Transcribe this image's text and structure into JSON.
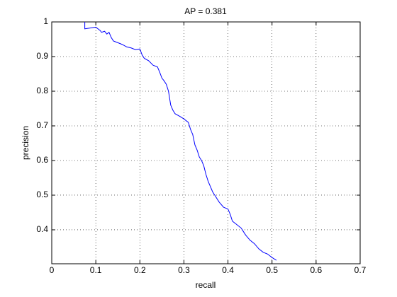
{
  "chart_data": {
    "type": "line",
    "title": "AP = 0.381",
    "x_label": "recall",
    "y_label": "precision",
    "xlim": [
      0,
      0.7
    ],
    "xticks": [
      0,
      0.1,
      0.2,
      0.3,
      0.4,
      0.5,
      0.6,
      0.7
    ],
    "ylim": [
      0.302,
      1
    ],
    "yticks": [
      0.4,
      0.5,
      0.6,
      0.7,
      0.8,
      0.9,
      1
    ],
    "grid": true,
    "series": [
      {
        "color": "#0000ff",
        "x": [
          0.075,
          0.075,
          0.1,
          0.11,
          0.113,
          0.12,
          0.125,
          0.13,
          0.135,
          0.14,
          0.15,
          0.16,
          0.17,
          0.18,
          0.19,
          0.2,
          0.205,
          0.21,
          0.22,
          0.23,
          0.24,
          0.245,
          0.25,
          0.255,
          0.26,
          0.265,
          0.27,
          0.275,
          0.28,
          0.29,
          0.3,
          0.31,
          0.315,
          0.32,
          0.325,
          0.33,
          0.335,
          0.34,
          0.345,
          0.35,
          0.355,
          0.36,
          0.365,
          0.37,
          0.38,
          0.39,
          0.4,
          0.405,
          0.41,
          0.42,
          0.43,
          0.435,
          0.44,
          0.45,
          0.46,
          0.47,
          0.48,
          0.49,
          0.5,
          0.51
        ],
        "values": [
          1,
          0.98,
          0.985,
          0.975,
          0.97,
          0.973,
          0.965,
          0.97,
          0.955,
          0.945,
          0.94,
          0.935,
          0.928,
          0.925,
          0.92,
          0.922,
          0.905,
          0.895,
          0.888,
          0.875,
          0.87,
          0.855,
          0.838,
          0.83,
          0.82,
          0.8,
          0.76,
          0.745,
          0.735,
          0.728,
          0.72,
          0.71,
          0.69,
          0.675,
          0.645,
          0.63,
          0.61,
          0.6,
          0.585,
          0.56,
          0.54,
          0.525,
          0.51,
          0.5,
          0.48,
          0.465,
          0.46,
          0.445,
          0.425,
          0.415,
          0.405,
          0.395,
          0.385,
          0.37,
          0.36,
          0.345,
          0.335,
          0.33,
          0.32,
          0.312
        ]
      }
    ]
  }
}
